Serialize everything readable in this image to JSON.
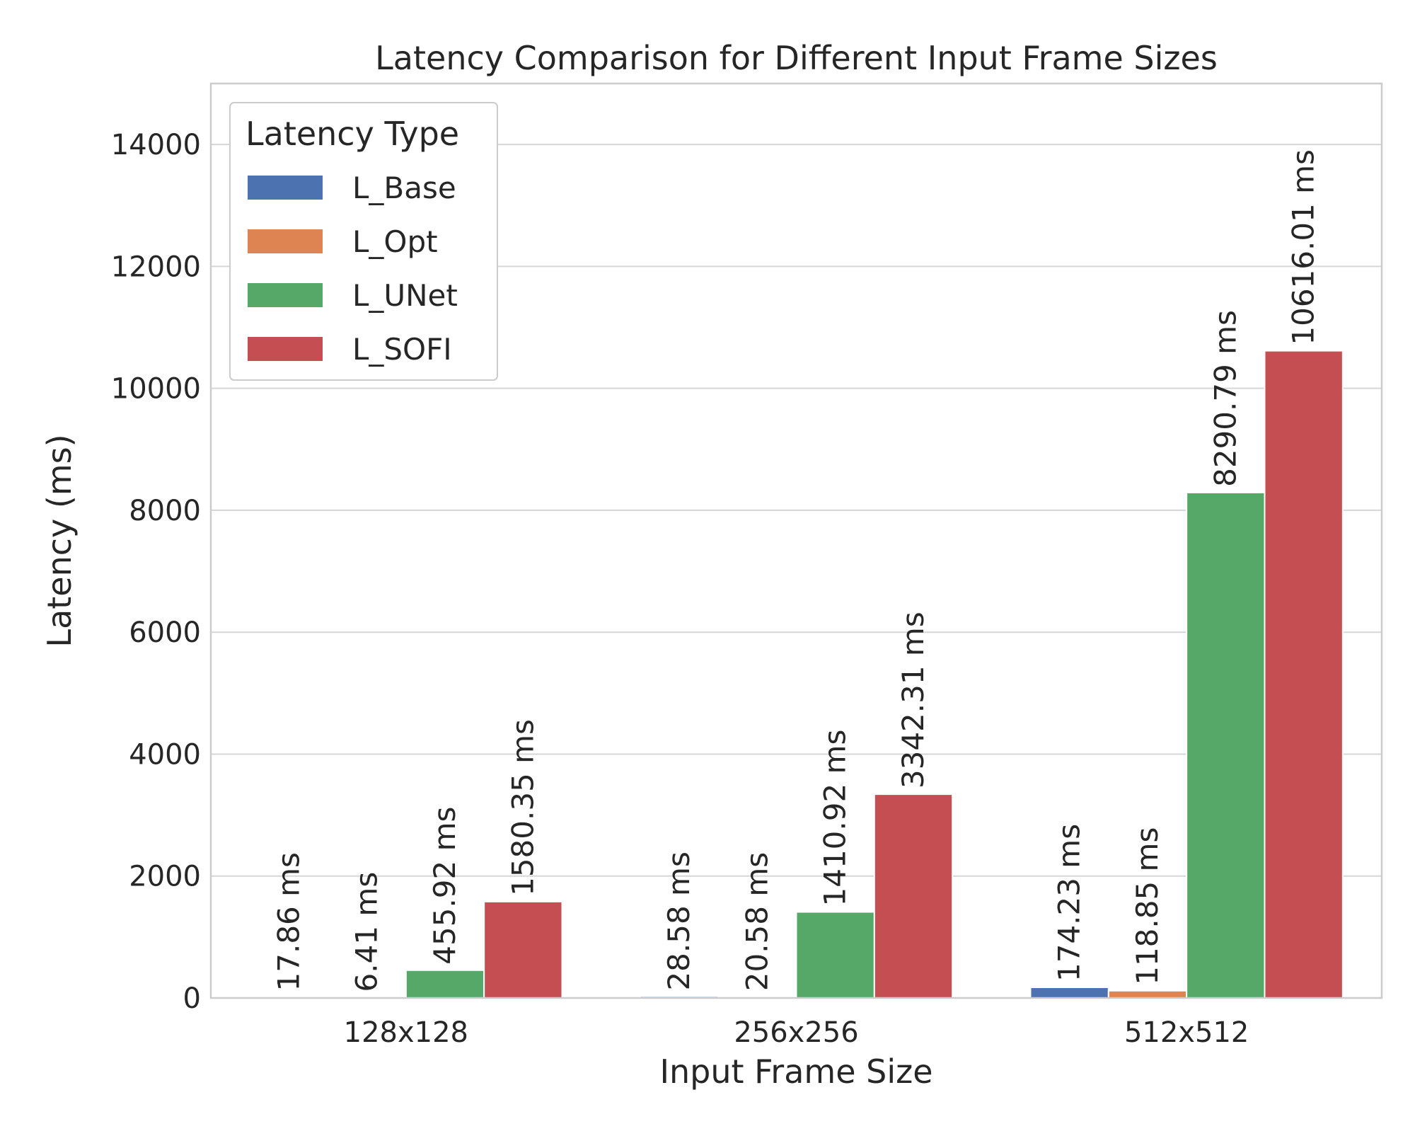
{
  "chart_data": {
    "type": "bar",
    "title": "Latency Comparison for Different Input Frame Sizes",
    "xlabel": "Input Frame Size",
    "ylabel": "Latency (ms)",
    "categories": [
      "128x128",
      "256x256",
      "512x512"
    ],
    "ylim": [
      0,
      15000
    ],
    "yticks": [
      0,
      2000,
      4000,
      6000,
      8000,
      10000,
      12000,
      14000
    ],
    "ytick_labels": [
      "0",
      "2000",
      "4000",
      "6000",
      "8000",
      "10000",
      "12000",
      "14000"
    ],
    "grid": true,
    "legend": {
      "title": "Latency Type",
      "placement": "top-left"
    },
    "series": [
      {
        "name": "L_Base",
        "color": "#4c72b0",
        "values": [
          17.86,
          28.58,
          174.23
        ],
        "labels": [
          "17.86 ms",
          "28.58 ms",
          "174.23 ms"
        ]
      },
      {
        "name": "L_Opt",
        "color": "#dd8452",
        "values": [
          6.41,
          20.58,
          118.85
        ],
        "labels": [
          "6.41 ms",
          "20.58 ms",
          "118.85 ms"
        ]
      },
      {
        "name": "L_UNet",
        "color": "#55a868",
        "values": [
          455.92,
          1410.92,
          8290.79
        ],
        "labels": [
          "455.92 ms",
          "1410.92 ms",
          "8290.79 ms"
        ]
      },
      {
        "name": "L_SOFI",
        "color": "#c44e52",
        "values": [
          1580.35,
          3342.31,
          10616.01
        ],
        "labels": [
          "1580.35 ms",
          "3342.31 ms",
          "10616.01 ms"
        ]
      }
    ]
  }
}
